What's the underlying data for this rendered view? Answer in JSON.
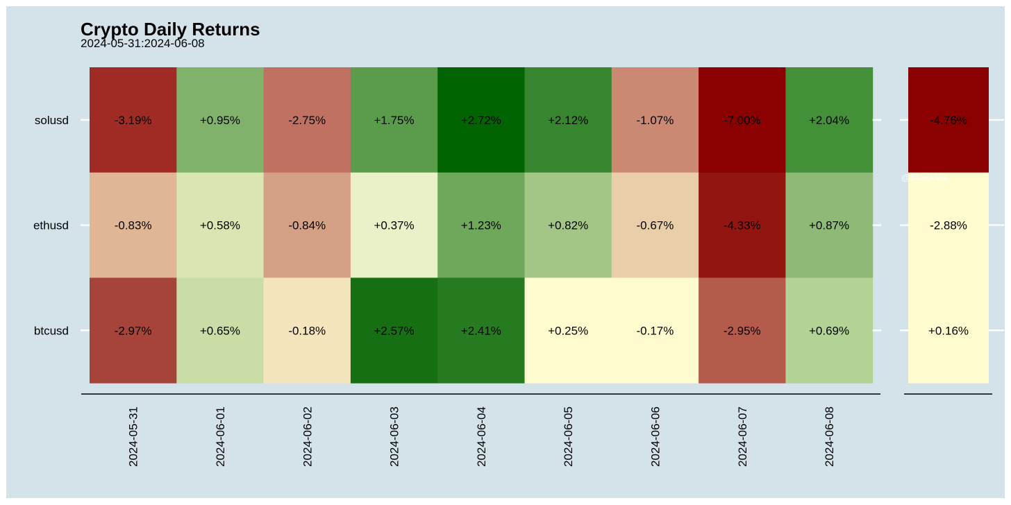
{
  "chart_data": {
    "type": "heatmap",
    "title": "Crypto Daily Returns",
    "subtitle": "2024-05-31:2024-06-08",
    "watermark": "@StockViz",
    "rows": [
      "solusd",
      "ethusd",
      "btcusd"
    ],
    "columns": [
      "2024-05-31",
      "2024-06-01",
      "2024-06-02",
      "2024-06-03",
      "2024-06-04",
      "2024-06-05",
      "2024-06-06",
      "2024-06-07",
      "2024-06-08"
    ],
    "values": [
      [
        -3.19,
        0.95,
        -2.75,
        1.75,
        2.72,
        2.12,
        -1.07,
        -7.0,
        2.04
      ],
      [
        -0.83,
        0.58,
        -0.84,
        0.37,
        1.23,
        0.82,
        -0.67,
        -4.33,
        0.87
      ],
      [
        -2.97,
        0.65,
        -0.18,
        2.57,
        2.41,
        0.25,
        -0.17,
        -2.95,
        0.69
      ]
    ],
    "labels": [
      [
        "-3.19%",
        "+0.95%",
        "-2.75%",
        "+1.75%",
        "+2.72%",
        "+2.12%",
        "-1.07%",
        "-7.00%",
        "+2.04%"
      ],
      [
        "-0.83%",
        "+0.58%",
        "-0.84%",
        "+0.37%",
        "+1.23%",
        "+0.82%",
        "-0.67%",
        "-4.33%",
        "+0.87%"
      ],
      [
        "-2.97%",
        "+0.65%",
        "-0.18%",
        "+2.57%",
        "+2.41%",
        "+0.25%",
        "-0.17%",
        "-2.95%",
        "+0.69%"
      ]
    ],
    "colors": [
      [
        "#9f2b24",
        "#81b26b",
        "#c07162",
        "#5a9c4c",
        "#006400",
        "#388530",
        "#cb8973",
        "#8b0000",
        "#439039"
      ],
      [
        "#e0b695",
        "#d9e6b2",
        "#d5a186",
        "#eaf0c7",
        "#6fa75b",
        "#a3c687",
        "#e9ceaa",
        "#921510",
        "#8eb977"
      ],
      [
        "#a6433a",
        "#cbdda6",
        "#f5e5bc",
        "#166f12",
        "#267b20",
        "#fffcd0",
        "#fffcd0",
        "#b55b4c",
        "#b3d295"
      ]
    ],
    "total": {
      "values": [
        -4.76,
        -2.88,
        0.16
      ],
      "labels": [
        "-4.76%",
        "-2.88%",
        "+0.16%"
      ],
      "colors": [
        "#8b0000",
        "#fffcd0",
        "#fffcd0"
      ]
    }
  }
}
